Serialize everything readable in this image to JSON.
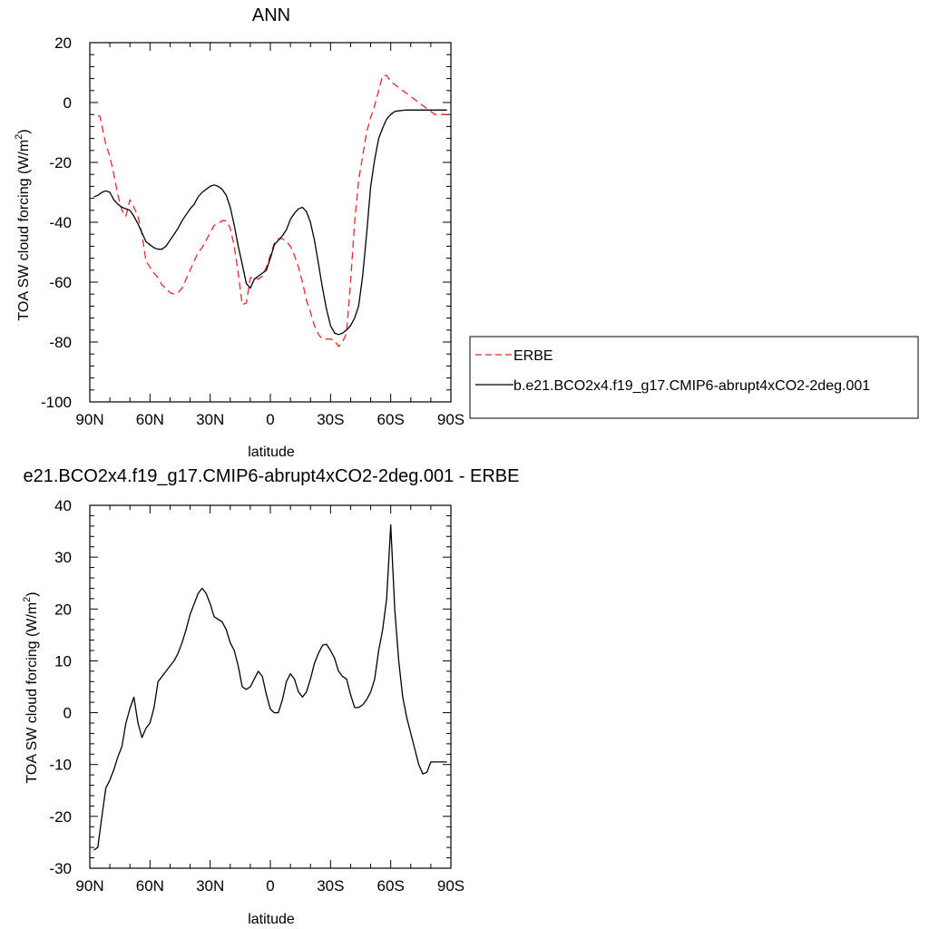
{
  "chart_data": [
    {
      "type": "line",
      "title": "ANN",
      "xlabel": "latitude",
      "ylabel": "TOA SW cloud forcing (W/m",
      "ylabel_sup": "2",
      "ylabel_suffix": ")",
      "xlim": [
        90,
        -90
      ],
      "ylim": [
        -100,
        20
      ],
      "x_ticks": [
        90,
        60,
        30,
        0,
        -30,
        -60,
        -90
      ],
      "x_tick_labels": [
        "90N",
        "60N",
        "30N",
        "0",
        "30S",
        "60S",
        "90S"
      ],
      "y_ticks": [
        -100,
        -80,
        -60,
        -40,
        -20,
        0,
        20
      ],
      "y_tick_labels": [
        "-100",
        "-80",
        "-60",
        "-40",
        "-20",
        "0",
        "20"
      ],
      "grid": false,
      "legend_position": "right",
      "series": [
        {
          "name": "ERBE",
          "color": "#e8262b",
          "dash": "dashed",
          "x": [
            86,
            85,
            82,
            80,
            78,
            76,
            74,
            72,
            70,
            68,
            66,
            64,
            62,
            60,
            58,
            56,
            54,
            52,
            50,
            48,
            46,
            44,
            42,
            40,
            38,
            36,
            34,
            32,
            30,
            28,
            26,
            24,
            22,
            20,
            18,
            16,
            14,
            12,
            10,
            8,
            6,
            4,
            2,
            0,
            -2,
            -4,
            -6,
            -8,
            -10,
            -12,
            -14,
            -16,
            -18,
            -20,
            -22,
            -24,
            -26,
            -28,
            -30,
            -32,
            -34,
            -36,
            -38,
            -40,
            -42,
            -44,
            -46,
            -48,
            -50,
            -52,
            -54,
            -56,
            -58,
            -60,
            -62,
            -64,
            -66,
            -68,
            -70,
            -72,
            -74,
            -76,
            -78,
            -80,
            -82,
            -84,
            -86,
            -88
          ],
          "y": [
            -4.5,
            -4.5,
            -14,
            -18,
            -24,
            -31,
            -36,
            -38,
            -32.5,
            -35,
            -38,
            -44,
            -53,
            -55,
            -57,
            -58.5,
            -61,
            -62,
            -63.5,
            -64,
            -63.5,
            -62,
            -59,
            -56,
            -53,
            -50,
            -48.5,
            -46,
            -43.5,
            -41,
            -40.5,
            -39.5,
            -39.5,
            -42,
            -48,
            -57,
            -67.5,
            -67,
            -58.5,
            -58.5,
            -59,
            -58,
            -55,
            -51,
            -47,
            -45.5,
            -45.5,
            -46.5,
            -48,
            -51,
            -55,
            -60,
            -66,
            -70,
            -74.5,
            -77.5,
            -79,
            -79,
            -79,
            -79.5,
            -81.5,
            -80,
            -77,
            -60,
            -40,
            -26,
            -18,
            -10,
            -5,
            -1,
            4,
            9,
            9,
            7,
            6,
            5,
            4,
            3,
            2,
            1,
            0,
            -1,
            -2,
            -3,
            -4,
            -4,
            -4,
            -4
          ],
          "x_end": -88
        },
        {
          "name": "b.e21.BCO2x4.f19_g17.CMIP6-abrupt4xCO2-2deg.001",
          "color": "#000000",
          "dash": "solid",
          "x": [
            88,
            86,
            84,
            82,
            80,
            78,
            76,
            74,
            72,
            70,
            68,
            66,
            64,
            62,
            60,
            58,
            56,
            54,
            52,
            50,
            48,
            46,
            44,
            42,
            40,
            38,
            36,
            34,
            32,
            30,
            28,
            26,
            24,
            22,
            20,
            18,
            16,
            14,
            12,
            10,
            8,
            6,
            4,
            2,
            0,
            -2,
            -4,
            -6,
            -8,
            -10,
            -12,
            -14,
            -16,
            -18,
            -20,
            -22,
            -24,
            -26,
            -28,
            -30,
            -32,
            -34,
            -36,
            -38,
            -40,
            -42,
            -44,
            -46,
            -48,
            -50,
            -52,
            -54,
            -56,
            -58,
            -60,
            -62,
            -64,
            -66,
            -68,
            -70,
            -72,
            -74,
            -76,
            -78,
            -80,
            -82,
            -84,
            -86,
            -88
          ],
          "y": [
            -31.5,
            -31,
            -30,
            -29.5,
            -30,
            -32.5,
            -34,
            -35,
            -35.5,
            -36,
            -38,
            -40.5,
            -43.5,
            -46.5,
            -47.5,
            -48.5,
            -49,
            -49,
            -48,
            -46,
            -44,
            -42,
            -39.5,
            -37.5,
            -35.5,
            -34,
            -31.5,
            -30,
            -29,
            -28,
            -27.5,
            -28,
            -29,
            -31,
            -35,
            -41,
            -48,
            -54,
            -60.5,
            -62,
            -59,
            -58,
            -57,
            -56,
            -52,
            -47.5,
            -46,
            -44.5,
            -42.5,
            -39,
            -37,
            -35.5,
            -35,
            -36.5,
            -40,
            -46,
            -54,
            -62,
            -69,
            -74.5,
            -77,
            -77.5,
            -77,
            -76,
            -74.5,
            -72,
            -68,
            -58,
            -44,
            -28,
            -19,
            -12,
            -8.5,
            -5.5,
            -4,
            -3,
            -2.8,
            -2.6,
            -2.5,
            -2.5,
            -2.5,
            -2.5,
            -2.5,
            -2.5,
            -2.5,
            -2.5,
            -2.5,
            -2.5,
            -2.5
          ]
        }
      ]
    },
    {
      "type": "line",
      "title": "e21.BCO2x4.f19_g17.CMIP6-abrupt4xCO2-2deg.001 - ERBE",
      "xlabel": "latitude",
      "ylabel": "TOA SW cloud forcing (W/m",
      "ylabel_sup": "2",
      "ylabel_suffix": ")",
      "xlim": [
        90,
        -90
      ],
      "ylim": [
        -30,
        40
      ],
      "x_ticks": [
        90,
        60,
        30,
        0,
        -30,
        -60,
        -90
      ],
      "x_tick_labels": [
        "90N",
        "60N",
        "30N",
        "0",
        "30S",
        "60S",
        "90S"
      ],
      "y_ticks": [
        -30,
        -20,
        -10,
        0,
        10,
        20,
        30,
        40
      ],
      "y_tick_labels": [
        "-30",
        "-20",
        "-10",
        "0",
        "10",
        "20",
        "30",
        "40"
      ],
      "grid": false,
      "series": [
        {
          "name": "",
          "color": "#000000",
          "dash": "solid",
          "x": [
            88,
            86,
            84,
            82,
            80,
            78,
            76,
            74,
            72,
            70,
            68,
            66,
            64,
            62,
            60,
            58,
            56,
            54,
            52,
            50,
            48,
            46,
            44,
            42,
            40,
            38,
            36,
            34,
            32,
            30,
            28,
            26,
            24,
            22,
            20,
            18,
            16,
            14,
            12,
            10,
            8,
            6,
            4,
            2,
            0,
            -2,
            -4,
            -6,
            -8,
            -10,
            -12,
            -14,
            -16,
            -18,
            -20,
            -22,
            -24,
            -26,
            -28,
            -30,
            -32,
            -34,
            -36,
            -38,
            -40,
            -42,
            -44,
            -46,
            -48,
            -50,
            -52,
            -54,
            -56,
            -58,
            -60,
            -62,
            -64,
            -66,
            -68,
            -70,
            -72,
            -74,
            -76,
            -78,
            -80,
            -82,
            -84,
            -86,
            -88
          ],
          "y": [
            -26.5,
            -26,
            -20,
            -14.5,
            -13,
            -11,
            -8.5,
            -6.5,
            -2,
            0.8,
            3,
            -2,
            -4.8,
            -3,
            -2,
            1,
            6,
            7,
            8,
            9,
            10,
            11.5,
            13.5,
            16,
            19,
            21,
            23,
            24,
            23,
            21,
            18.5,
            18,
            17.5,
            16,
            13.5,
            12,
            9,
            5,
            4.5,
            5,
            6.5,
            8,
            7,
            3.5,
            0.7,
            0,
            0,
            2.5,
            6,
            7.5,
            6.5,
            4,
            3,
            4,
            6.5,
            9.5,
            11.5,
            13,
            13.2,
            12,
            10.5,
            8,
            7,
            6.5,
            3.5,
            1,
            1,
            1.5,
            2.5,
            4,
            6.5,
            12,
            16,
            22,
            36.2,
            20,
            10,
            3,
            -1,
            -4,
            -7,
            -10,
            -11.8,
            -11.5,
            -9.5,
            -9.5,
            -9.5,
            -9.5,
            -9.5
          ]
        }
      ]
    }
  ]
}
